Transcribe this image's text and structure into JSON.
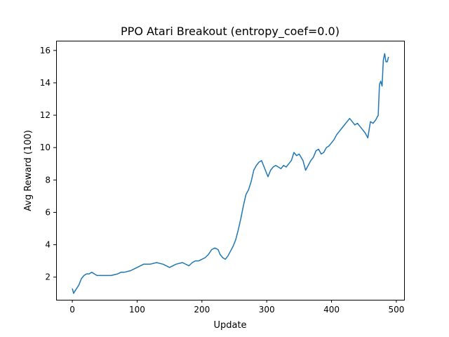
{
  "chart_data": {
    "type": "line",
    "title": "PPO Atari Breakout (entropy_coef=0.0)",
    "xlabel": "Update",
    "ylabel": "Avg Reward (100)",
    "xlim": [
      -25,
      512
    ],
    "ylim": [
      0.6,
      16.6
    ],
    "xticks": [
      0,
      100,
      200,
      300,
      400,
      500
    ],
    "yticks": [
      2,
      4,
      6,
      8,
      10,
      12,
      14,
      16
    ],
    "grid": false,
    "legend": "none",
    "color": "#1f77b4",
    "series": [
      {
        "x": [
          0,
          2,
          5,
          10,
          14,
          18,
          22,
          26,
          30,
          34,
          38,
          42,
          50,
          60,
          70,
          75,
          80,
          90,
          100,
          110,
          120,
          130,
          140,
          145,
          150,
          160,
          170,
          175,
          180,
          185,
          190,
          195,
          200,
          205,
          210,
          215,
          220,
          225,
          228,
          232,
          236,
          240,
          244,
          248,
          252,
          256,
          260,
          264,
          268,
          272,
          276,
          280,
          284,
          288,
          292,
          295,
          298,
          302,
          306,
          310,
          314,
          318,
          322,
          326,
          330,
          334,
          338,
          342,
          346,
          350,
          356,
          360,
          364,
          368,
          372,
          376,
          380,
          384,
          388,
          392,
          396,
          400,
          404,
          408,
          412,
          416,
          420,
          424,
          428,
          432,
          436,
          440,
          444,
          448,
          452,
          456,
          460,
          464,
          468,
          472,
          474,
          476,
          478,
          480,
          482,
          484,
          486,
          488
        ],
        "y": [
          1.3,
          1.0,
          1.2,
          1.5,
          1.9,
          2.1,
          2.2,
          2.2,
          2.3,
          2.2,
          2.1,
          2.1,
          2.1,
          2.1,
          2.2,
          2.3,
          2.3,
          2.4,
          2.6,
          2.8,
          2.8,
          2.9,
          2.8,
          2.7,
          2.6,
          2.8,
          2.9,
          2.8,
          2.7,
          2.9,
          3.0,
          3.0,
          3.1,
          3.2,
          3.4,
          3.7,
          3.8,
          3.7,
          3.4,
          3.2,
          3.1,
          3.3,
          3.6,
          3.9,
          4.3,
          4.9,
          5.6,
          6.4,
          7.1,
          7.4,
          7.9,
          8.6,
          8.9,
          9.1,
          9.2,
          8.9,
          8.6,
          8.2,
          8.6,
          8.8,
          8.9,
          8.8,
          8.7,
          8.9,
          8.8,
          9.0,
          9.2,
          9.7,
          9.5,
          9.6,
          9.2,
          8.6,
          8.9,
          9.2,
          9.4,
          9.8,
          9.9,
          9.6,
          9.7,
          10.0,
          10.1,
          10.3,
          10.5,
          10.8,
          11.0,
          11.2,
          11.4,
          11.6,
          11.8,
          11.6,
          11.4,
          11.5,
          11.3,
          11.1,
          10.9,
          10.6,
          11.6,
          11.5,
          11.7,
          12.0,
          13.9,
          14.1,
          13.8,
          15.4,
          15.8,
          15.3,
          15.3,
          15.6
        ]
      }
    ]
  }
}
